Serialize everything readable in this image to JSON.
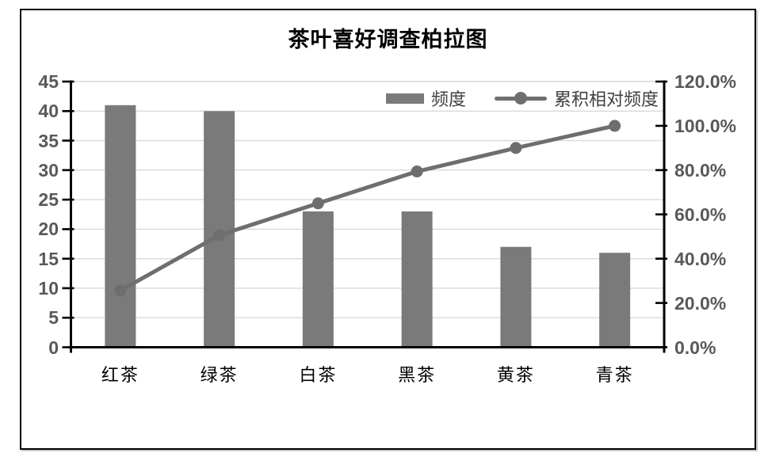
{
  "window": {
    "background": "#ffffff"
  },
  "chart": {
    "title": "茶叶喜好调查柏拉图",
    "legend": {
      "bar_label": "频度",
      "line_label": "累积相对频度"
    },
    "colors": {
      "bar": "#7a7a7a",
      "line": "#6e6e6e",
      "marker": "#6e6e6e",
      "grid": "#d9d9d9",
      "axis": "#000000",
      "tick_text": "#595959",
      "category_text": "#000000",
      "frame_border": "#000000"
    }
  },
  "chart_data": {
    "type": "bar",
    "subtype": "pareto-combo",
    "title": "茶叶喜好调查柏拉图",
    "categories": [
      "红茶",
      "绿茶",
      "白茶",
      "黑茶",
      "黄茶",
      "青茶"
    ],
    "series": [
      {
        "name": "频度",
        "type": "bar",
        "axis": "left",
        "values": [
          41,
          40,
          23,
          23,
          17,
          16
        ]
      },
      {
        "name": "累积相对频度",
        "type": "line",
        "axis": "right",
        "unit": "%",
        "values": [
          25.6,
          50.6,
          65.0,
          79.4,
          90.0,
          100.0
        ]
      }
    ],
    "left_axis": {
      "min": 0,
      "max": 45,
      "step": 5,
      "tick_labels": [
        "0",
        "5",
        "10",
        "15",
        "20",
        "25",
        "30",
        "35",
        "40",
        "45"
      ]
    },
    "right_axis": {
      "min": 0,
      "max": 120,
      "step": 20,
      "tick_labels": [
        "0.0%",
        "20.0%",
        "40.0%",
        "60.0%",
        "80.0%",
        "100.0%",
        "120.0%"
      ]
    },
    "grid": true,
    "legend_position": "inside-top-right",
    "xlabel": "",
    "ylabel": "",
    "y2label": ""
  }
}
